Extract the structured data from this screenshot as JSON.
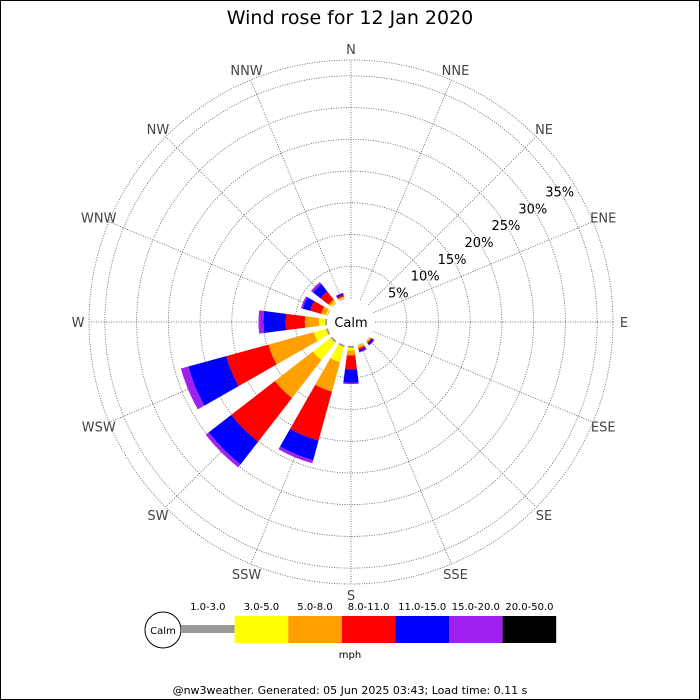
{
  "chart_data": {
    "type": "wind-rose",
    "title": "Wind rose for 12 Jan 2020",
    "directions": [
      "N",
      "NNE",
      "NE",
      "ENE",
      "E",
      "ESE",
      "SE",
      "SSE",
      "S",
      "SSW",
      "SW",
      "WSW",
      "W",
      "WNW",
      "NW",
      "NNW"
    ],
    "radial_ticks": [
      "5%",
      "10%",
      "15%",
      "20%",
      "25%",
      "30%",
      "35%"
    ],
    "radial_values": [
      5,
      10,
      15,
      20,
      25,
      30,
      35
    ],
    "rmax": 37.5,
    "calm_label": "Calm",
    "speed_bins": [
      {
        "label": "1.0-3.0",
        "color": "#999999"
      },
      {
        "label": "3.0-5.0",
        "color": "#ffff00"
      },
      {
        "label": "5.0-8.0",
        "color": "#ff9f00"
      },
      {
        "label": "8.0-11.0",
        "color": "#ff0000"
      },
      {
        "label": "11.0-15.0",
        "color": "#0000ff"
      },
      {
        "label": "15.0-20.0",
        "color": "#a020f0"
      },
      {
        "label": "20.0-50.0",
        "color": "#000000"
      }
    ],
    "unit_label": "mph",
    "footer": "@nw3weather. Generated: 05 Jun 2025 03:43; Load time: 0.11 s",
    "series": [
      {
        "direction": "SE",
        "segments": [
          0.1,
          0.1,
          0.1,
          0.2,
          0.3,
          0.1,
          0
        ]
      },
      {
        "direction": "SSE",
        "segments": [
          0.1,
          0.1,
          0.3,
          0.3,
          0.3,
          0.1,
          0
        ]
      },
      {
        "direction": "S",
        "segments": [
          0.3,
          0.4,
          0.8,
          2.2,
          2.1,
          0.2,
          0
        ]
      },
      {
        "direction": "SSW",
        "segments": [
          0.3,
          2.5,
          4.8,
          8.0,
          3.2,
          0.5,
          0
        ]
      },
      {
        "direction": "SW",
        "segments": [
          0.3,
          3.5,
          7.6,
          8.7,
          4.5,
          0.6,
          0
        ]
      },
      {
        "direction": "WSW",
        "segments": [
          0.3,
          2.0,
          7.4,
          6.9,
          6.2,
          1.2,
          0
        ]
      },
      {
        "direction": "W",
        "segments": [
          0.3,
          1.0,
          2.2,
          3.0,
          3.5,
          0.8,
          0
        ]
      },
      {
        "direction": "WNW",
        "segments": [
          0.1,
          0.2,
          0.8,
          1.8,
          1.2,
          0.3,
          0
        ]
      },
      {
        "direction": "NW",
        "segments": [
          0.1,
          0.2,
          0.4,
          1.6,
          1.5,
          0.4,
          0
        ]
      },
      {
        "direction": "NNW",
        "segments": [
          0.1,
          0.1,
          0.2,
          0.2,
          0.3,
          0.1,
          0
        ]
      }
    ]
  }
}
